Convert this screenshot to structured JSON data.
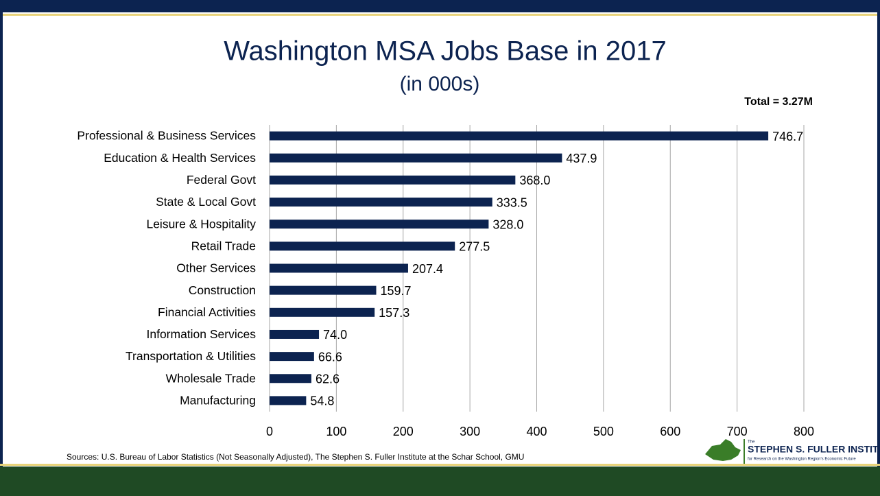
{
  "chart_data": {
    "type": "bar",
    "orientation": "horizontal",
    "title": "Washington MSA Jobs Base in 2017",
    "subtitle": "(in 000s)",
    "annotation": "Total = 3.27M",
    "source": "Sources: U.S. Bureau of Labor Statistics (Not Seasonally Adjusted), The Stephen S. Fuller Institute at the Schar School, GMU",
    "categories": [
      "Professional & Business Services",
      "Education & Health Services",
      "Federal Govt",
      "State & Local Govt",
      "Leisure & Hospitality",
      "Retail Trade",
      "Other Services",
      "Construction",
      "Financial Activities",
      "Information Services",
      "Transportation & Utilities",
      "Wholesale Trade",
      "Manufacturing"
    ],
    "values": [
      746.7,
      437.9,
      368.0,
      333.5,
      328.0,
      277.5,
      207.4,
      159.7,
      157.3,
      74.0,
      66.6,
      62.6,
      54.8
    ],
    "value_labels": [
      "746.7",
      "437.9",
      "368.0",
      "333.5",
      "328.0",
      "277.5",
      "207.4",
      "159.7",
      "157.3",
      "74.0",
      "66.6",
      "62.6",
      "54.8"
    ],
    "color": "#0c2350",
    "xlim": [
      0,
      800
    ],
    "xticks": [
      0,
      100,
      200,
      300,
      400,
      500,
      600,
      700,
      800
    ],
    "grid": true
  },
  "logo": {
    "small": "The",
    "name": "STEPHEN S. FULLER INSTITUTE",
    "tagline": "for Research on the Washington Region's Economic Future"
  }
}
